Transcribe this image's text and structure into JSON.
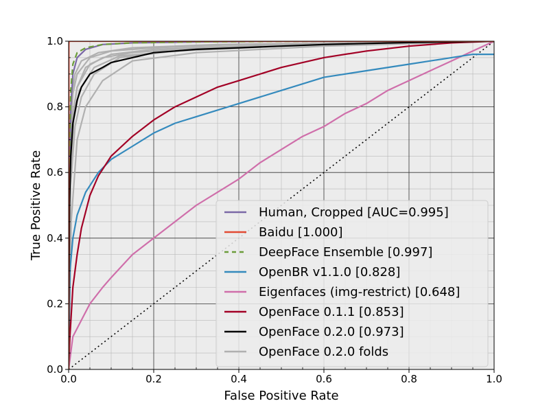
{
  "chart_data": {
    "type": "line",
    "title": "",
    "xlabel": "False Positive Rate",
    "ylabel": "True Positive Rate",
    "xlim": [
      0,
      1
    ],
    "ylim": [
      0,
      1
    ],
    "x_ticks": [
      "0.0",
      "0.2",
      "0.4",
      "0.6",
      "0.8",
      "1.0"
    ],
    "y_ticks": [
      "0.0",
      "0.2",
      "0.4",
      "0.6",
      "0.8",
      "1.0"
    ],
    "grid": true,
    "minor_grid": true,
    "background": "#ececec",
    "legend_position": "lower-right",
    "series": [
      {
        "name": "Human, Cropped [AUC=0.995]",
        "color": "#7a68a6",
        "dash": "solid",
        "x": [
          0,
          0.002,
          0.005,
          0.01,
          0.02,
          0.04,
          0.08,
          0.15,
          0.3,
          0.5,
          1.0
        ],
        "y": [
          0,
          0.6,
          0.8,
          0.9,
          0.95,
          0.975,
          0.99,
          0.995,
          0.998,
          1.0,
          1.0
        ]
      },
      {
        "name": "Baidu [1.000]",
        "color": "#e24a33",
        "dash": "solid",
        "x": [
          0,
          0.0005,
          0.001,
          1.0
        ],
        "y": [
          0,
          0.99,
          1.0,
          1.0
        ]
      },
      {
        "name": "DeepFace Ensemble [0.997]",
        "color": "#6b9d3a",
        "dash": "dashed",
        "x": [
          0,
          0.002,
          0.005,
          0.01,
          0.02,
          0.04,
          0.08,
          0.15,
          0.3,
          0.6,
          1.0
        ],
        "y": [
          0,
          0.65,
          0.85,
          0.93,
          0.965,
          0.98,
          0.99,
          0.995,
          0.998,
          1.0,
          1.0
        ]
      },
      {
        "name": "OpenBR v1.1.0 [0.828]",
        "color": "#348abd",
        "dash": "solid",
        "x": [
          0,
          0.003,
          0.01,
          0.02,
          0.04,
          0.07,
          0.1,
          0.15,
          0.2,
          0.25,
          0.3,
          0.4,
          0.5,
          0.6,
          0.7,
          0.8,
          0.9,
          0.95,
          1.0
        ],
        "y": [
          0,
          0.3,
          0.4,
          0.47,
          0.54,
          0.6,
          0.64,
          0.68,
          0.72,
          0.75,
          0.77,
          0.81,
          0.85,
          0.89,
          0.91,
          0.93,
          0.95,
          0.96,
          0.96
        ]
      },
      {
        "name": "Eigenfaces (img-restrict) [0.648]",
        "color": "#cf6eaa",
        "dash": "solid",
        "x": [
          0,
          0.01,
          0.03,
          0.05,
          0.08,
          0.1,
          0.15,
          0.2,
          0.25,
          0.3,
          0.35,
          0.4,
          0.45,
          0.5,
          0.55,
          0.6,
          0.65,
          0.7,
          0.75,
          0.8,
          0.85,
          0.9,
          0.95,
          1.0
        ],
        "y": [
          0,
          0.1,
          0.15,
          0.2,
          0.25,
          0.28,
          0.35,
          0.4,
          0.45,
          0.5,
          0.54,
          0.58,
          0.63,
          0.67,
          0.71,
          0.74,
          0.78,
          0.81,
          0.85,
          0.88,
          0.91,
          0.94,
          0.97,
          1.0
        ]
      },
      {
        "name": "OpenFace 0.1.1 [0.853]",
        "color": "#a20025",
        "dash": "solid",
        "x": [
          0,
          0.003,
          0.01,
          0.02,
          0.03,
          0.05,
          0.07,
          0.1,
          0.15,
          0.2,
          0.25,
          0.3,
          0.35,
          0.4,
          0.5,
          0.6,
          0.7,
          0.8,
          0.9,
          1.0
        ],
        "y": [
          0,
          0.1,
          0.25,
          0.35,
          0.43,
          0.53,
          0.59,
          0.65,
          0.71,
          0.76,
          0.8,
          0.83,
          0.86,
          0.88,
          0.92,
          0.95,
          0.97,
          0.985,
          0.995,
          1.0
        ]
      },
      {
        "name": "OpenFace 0.2.0 [0.973]",
        "color": "#000000",
        "dash": "solid",
        "x": [
          0,
          0.002,
          0.005,
          0.01,
          0.02,
          0.03,
          0.05,
          0.08,
          0.1,
          0.15,
          0.2,
          0.3,
          0.4,
          0.5,
          0.6,
          0.7,
          0.8,
          0.9,
          1.0
        ],
        "y": [
          0,
          0.5,
          0.65,
          0.75,
          0.82,
          0.86,
          0.9,
          0.92,
          0.935,
          0.95,
          0.965,
          0.975,
          0.98,
          0.985,
          0.99,
          0.993,
          0.996,
          0.998,
          1.0
        ]
      },
      {
        "name": "OpenFace 0.2.0 folds",
        "color": "#b0b0b0",
        "dash": "solid",
        "x": [
          0,
          0.003,
          0.01,
          0.02,
          0.05,
          0.1,
          0.2,
          0.4,
          0.7,
          1.0
        ],
        "y": [
          0,
          0.6,
          0.78,
          0.86,
          0.93,
          0.96,
          0.975,
          0.985,
          0.995,
          1.0
        ]
      },
      {
        "name": "",
        "color": "#000000",
        "dash": "dotted",
        "x": [
          0,
          1.0
        ],
        "y": [
          0,
          1.0
        ]
      }
    ],
    "folds": [
      {
        "x": [
          0,
          0.002,
          0.008,
          0.02,
          0.04,
          0.08,
          0.15,
          0.3,
          0.6,
          1.0
        ],
        "y": [
          0,
          0.5,
          0.75,
          0.86,
          0.92,
          0.95,
          0.965,
          0.98,
          0.99,
          1.0
        ]
      },
      {
        "x": [
          0,
          0.004,
          0.015,
          0.03,
          0.06,
          0.12,
          0.25,
          0.5,
          1.0
        ],
        "y": [
          0,
          0.55,
          0.74,
          0.83,
          0.9,
          0.95,
          0.97,
          0.985,
          1.0
        ]
      },
      {
        "x": [
          0,
          0.003,
          0.01,
          0.02,
          0.05,
          0.1,
          0.2,
          0.4,
          1.0
        ],
        "y": [
          0,
          0.7,
          0.84,
          0.9,
          0.95,
          0.97,
          0.98,
          0.99,
          1.0
        ]
      },
      {
        "x": [
          0,
          0.006,
          0.02,
          0.04,
          0.08,
          0.15,
          0.3,
          0.6,
          1.0
        ],
        "y": [
          0,
          0.45,
          0.7,
          0.8,
          0.88,
          0.94,
          0.965,
          0.985,
          1.0
        ]
      },
      {
        "x": [
          0,
          0.002,
          0.006,
          0.015,
          0.03,
          0.07,
          0.15,
          0.35,
          1.0
        ],
        "y": [
          0,
          0.65,
          0.82,
          0.9,
          0.94,
          0.965,
          0.98,
          0.99,
          1.0
        ]
      },
      {
        "x": [
          0,
          0.005,
          0.012,
          0.025,
          0.06,
          0.12,
          0.3,
          0.6,
          1.0
        ],
        "y": [
          0,
          0.6,
          0.76,
          0.85,
          0.92,
          0.955,
          0.975,
          0.99,
          1.0
        ]
      }
    ]
  }
}
